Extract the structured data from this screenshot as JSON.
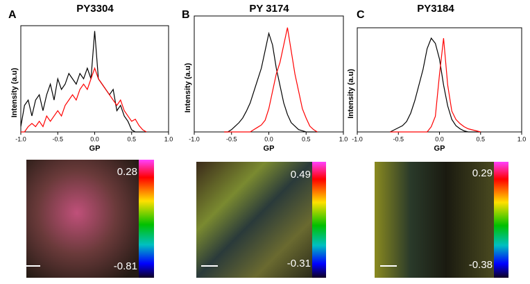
{
  "chart_data": [
    {
      "type": "line",
      "panel": "A",
      "title": "PY3304",
      "xlabel": "GP",
      "ylabel": "Intensity (a.u)",
      "xlim": [
        -1,
        1
      ],
      "xticks": [
        {
          "value": -1,
          "label": "-1.0"
        },
        -0.5,
        {
          "value": 0,
          "label": "0.0"
        },
        0.5,
        {
          "value": 1,
          "label": "1.0"
        }
      ],
      "ylim": [
        0,
        1
      ],
      "x": [
        -1.0,
        -0.95,
        -0.9,
        -0.85,
        -0.8,
        -0.75,
        -0.7,
        -0.65,
        -0.6,
        -0.55,
        -0.5,
        -0.45,
        -0.4,
        -0.35,
        -0.3,
        -0.25,
        -0.2,
        -0.15,
        -0.1,
        -0.05,
        0.0,
        0.05,
        0.1,
        0.15,
        0.2,
        0.25,
        0.3,
        0.35,
        0.4,
        0.45,
        0.5,
        0.55,
        0.6,
        0.65,
        0.7
      ],
      "series": [
        {
          "color": "#000000",
          "values": [
            0.05,
            0.25,
            0.3,
            0.15,
            0.3,
            0.35,
            0.2,
            0.35,
            0.45,
            0.3,
            0.5,
            0.4,
            0.45,
            0.55,
            0.5,
            0.45,
            0.55,
            0.5,
            0.6,
            0.5,
            0.95,
            0.5,
            0.45,
            0.4,
            0.35,
            0.4,
            0.2,
            0.25,
            0.15,
            0.1,
            0.02,
            0,
            0,
            0,
            0
          ]
        },
        {
          "color": "#ff0000",
          "values": [
            0,
            0,
            0.05,
            0.08,
            0.05,
            0.1,
            0.05,
            0.15,
            0.1,
            0.15,
            0.2,
            0.15,
            0.25,
            0.3,
            0.35,
            0.3,
            0.4,
            0.45,
            0.4,
            0.5,
            0.6,
            0.5,
            0.45,
            0.4,
            0.35,
            0.3,
            0.25,
            0.3,
            0.2,
            0.15,
            0.1,
            0.12,
            0.06,
            0.02,
            0
          ]
        }
      ],
      "colorbar": {
        "max": 0.28,
        "min": -0.81
      }
    },
    {
      "type": "line",
      "panel": "B",
      "title": "PY 3174",
      "xlabel": "GP",
      "ylabel": "Intensity (a.u)",
      "xlim": [
        -1,
        1
      ],
      "xticks": [
        {
          "value": -1,
          "label": "-1.0"
        },
        -0.5,
        {
          "value": 0,
          "label": "0.0"
        },
        0.5,
        {
          "value": 1,
          "label": "1.0"
        }
      ],
      "ylim": [
        0,
        1
      ],
      "x": [
        -0.6,
        -0.55,
        -0.5,
        -0.45,
        -0.4,
        -0.35,
        -0.3,
        -0.25,
        -0.2,
        -0.15,
        -0.1,
        -0.05,
        0.0,
        0.05,
        0.1,
        0.15,
        0.2,
        0.25,
        0.3,
        0.35,
        0.4,
        0.45,
        0.5,
        0.55,
        0.6,
        0.65
      ],
      "series": [
        {
          "color": "#000000",
          "values": [
            0,
            0,
            0.02,
            0.05,
            0.08,
            0.12,
            0.18,
            0.25,
            0.35,
            0.45,
            0.55,
            0.7,
            0.85,
            0.75,
            0.55,
            0.4,
            0.25,
            0.15,
            0.08,
            0.05,
            0.02,
            0.01,
            0,
            0,
            0,
            0
          ]
        },
        {
          "color": "#ff0000",
          "values": [
            0,
            0,
            0,
            0,
            0,
            0,
            0,
            0,
            0.02,
            0.04,
            0.06,
            0.1,
            0.2,
            0.35,
            0.5,
            0.6,
            0.75,
            0.9,
            0.7,
            0.5,
            0.35,
            0.2,
            0.12,
            0.05,
            0.02,
            0
          ]
        }
      ],
      "colorbar": {
        "max": 0.49,
        "min": -0.31
      }
    },
    {
      "type": "line",
      "panel": "C",
      "title": "PY3184",
      "xlabel": "GP",
      "ylabel": "Intensity (a.u)",
      "xlim": [
        -1,
        1
      ],
      "xticks": [
        {
          "value": -1,
          "label": "-1.0"
        },
        -0.5,
        {
          "value": 0,
          "label": "0.0"
        },
        0.5,
        {
          "value": 1,
          "label": "1.0"
        }
      ],
      "ylim": [
        0,
        1
      ],
      "x": [
        -0.6,
        -0.55,
        -0.5,
        -0.45,
        -0.4,
        -0.35,
        -0.3,
        -0.25,
        -0.2,
        -0.15,
        -0.1,
        -0.05,
        0.0,
        0.05,
        0.1,
        0.15,
        0.2,
        0.25,
        0.3,
        0.35,
        0.4,
        0.45,
        0.5
      ],
      "series": [
        {
          "color": "#000000",
          "values": [
            0,
            0.02,
            0.04,
            0.06,
            0.1,
            0.18,
            0.3,
            0.45,
            0.6,
            0.8,
            0.9,
            0.85,
            0.7,
            0.45,
            0.25,
            0.12,
            0.06,
            0.03,
            0.01,
            0,
            0,
            0,
            0
          ]
        },
        {
          "color": "#ff0000",
          "values": [
            0,
            0,
            0,
            0,
            0,
            0,
            0,
            0,
            0,
            0,
            0.05,
            0.15,
            0.55,
            0.9,
            0.45,
            0.2,
            0.12,
            0.08,
            0.05,
            0.03,
            0.02,
            0.01,
            0
          ]
        }
      ],
      "colorbar": {
        "max": 0.29,
        "min": -0.38
      }
    }
  ]
}
